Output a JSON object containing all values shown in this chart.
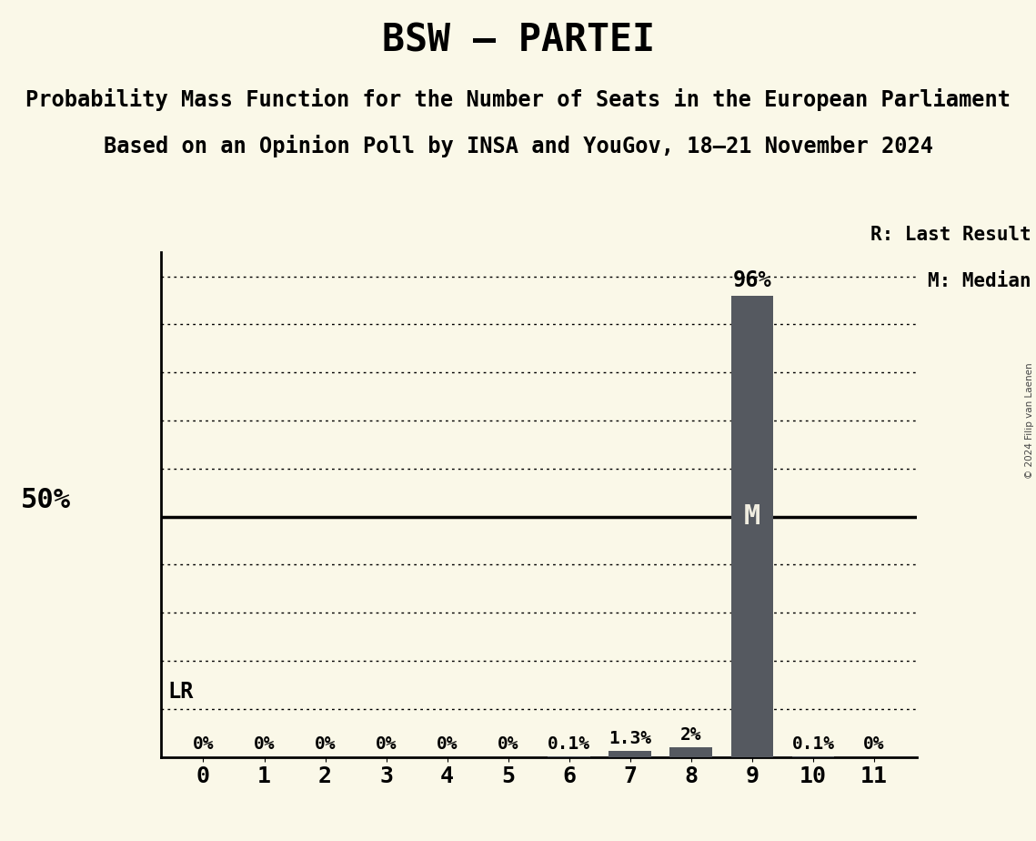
{
  "title": "BSW – PARTEI",
  "subtitle1": "Probability Mass Function for the Number of Seats in the European Parliament",
  "subtitle2": "Based on an Opinion Poll by INSA and YouGov, 18–21 November 2024",
  "copyright": "© 2024 Filip van Laenen",
  "seats": [
    0,
    1,
    2,
    3,
    4,
    5,
    6,
    7,
    8,
    9,
    10,
    11
  ],
  "probabilities": [
    0.0,
    0.0,
    0.0,
    0.0,
    0.0,
    0.0,
    0.001,
    0.013,
    0.02,
    0.96,
    0.001,
    0.0
  ],
  "prob_labels": [
    "0%",
    "0%",
    "0%",
    "0%",
    "0%",
    "0%",
    "0.1%",
    "1.3%",
    "2%",
    "",
    "0.1%",
    "0%"
  ],
  "bar_color": "#555960",
  "background_color": "#faf8e8",
  "median_seat": 9,
  "last_result_seat": 9,
  "ylim": [
    0,
    1.05
  ],
  "legend_r_text": "R: Last Result",
  "legend_m_text": "M: Median",
  "title_fontsize": 30,
  "subtitle_fontsize": 17,
  "bar_label_fontsize": 14,
  "axis_tick_fontsize": 18,
  "fifty_label": "50%",
  "lr_label": "LR",
  "m_label": "M",
  "ninety_six_label": "96%"
}
